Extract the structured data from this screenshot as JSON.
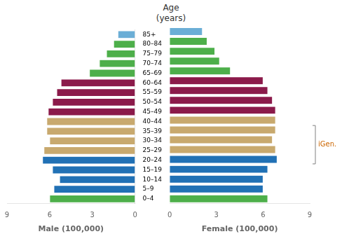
{
  "chart_data": [
    {
      "type": "bar",
      "orientation": "horizontal",
      "title": "Age\n(years)",
      "categories": [
        "0–4",
        "5–9",
        "10–14",
        "15–19",
        "20–24",
        "25–29",
        "30–34",
        "35–39",
        "40–44",
        "45–49",
        "50–54",
        "55–59",
        "60–64",
        "65–69",
        "70–74",
        "75–79",
        "80–84",
        "85+"
      ],
      "values": [
        6.0,
        5.7,
        5.3,
        5.8,
        6.5,
        6.4,
        6.0,
        6.2,
        6.2,
        6.1,
        5.8,
        5.5,
        5.2,
        3.2,
        2.5,
        2.0,
        1.5,
        1.2
      ],
      "colors": [
        "#4daf4a",
        "#2171b5",
        "#2171b5",
        "#2171b5",
        "#2171b5",
        "#c8a96e",
        "#c8a96e",
        "#c8a96e",
        "#c8a96e",
        "#8b1a4a",
        "#8b1a4a",
        "#8b1a4a",
        "#8b1a4a",
        "#4daf4a",
        "#4daf4a",
        "#4daf4a",
        "#4daf4a",
        "#6baed6"
      ],
      "xlabel": "Male (100,000)",
      "xlim": [
        9,
        0
      ],
      "xticks": [
        0,
        3,
        6,
        9
      ],
      "grid": false
    },
    {
      "type": "bar",
      "orientation": "horizontal",
      "categories": [
        "0–4",
        "5–9",
        "10–14",
        "15–19",
        "20–24",
        "25–29",
        "30–34",
        "35–39",
        "40–44",
        "45–49",
        "50–54",
        "55–59",
        "60–64",
        "65–69",
        "70–74",
        "75–79",
        "80–84",
        "85+"
      ],
      "values": [
        6.3,
        6.0,
        6.0,
        6.3,
        6.9,
        6.8,
        6.6,
        6.8,
        6.8,
        6.8,
        6.6,
        6.3,
        6.0,
        3.9,
        3.2,
        2.9,
        2.4,
        2.1
      ],
      "colors": [
        "#4daf4a",
        "#2171b5",
        "#2171b5",
        "#2171b5",
        "#2171b5",
        "#c8a96e",
        "#c8a96e",
        "#c8a96e",
        "#c8a96e",
        "#8b1a4a",
        "#8b1a4a",
        "#8b1a4a",
        "#8b1a4a",
        "#4daf4a",
        "#4daf4a",
        "#4daf4a",
        "#4daf4a",
        "#6baed6"
      ],
      "xlabel": "Female (100,000)",
      "xlim": [
        0,
        9
      ],
      "xticks": [
        0,
        3,
        6,
        9
      ],
      "grid": false,
      "tick_labels": "x",
      "annotations": [
        {
          "text": "iGen.",
          "from": "20–24",
          "to": "35–39",
          "color": "#cc6600"
        }
      ]
    }
  ]
}
